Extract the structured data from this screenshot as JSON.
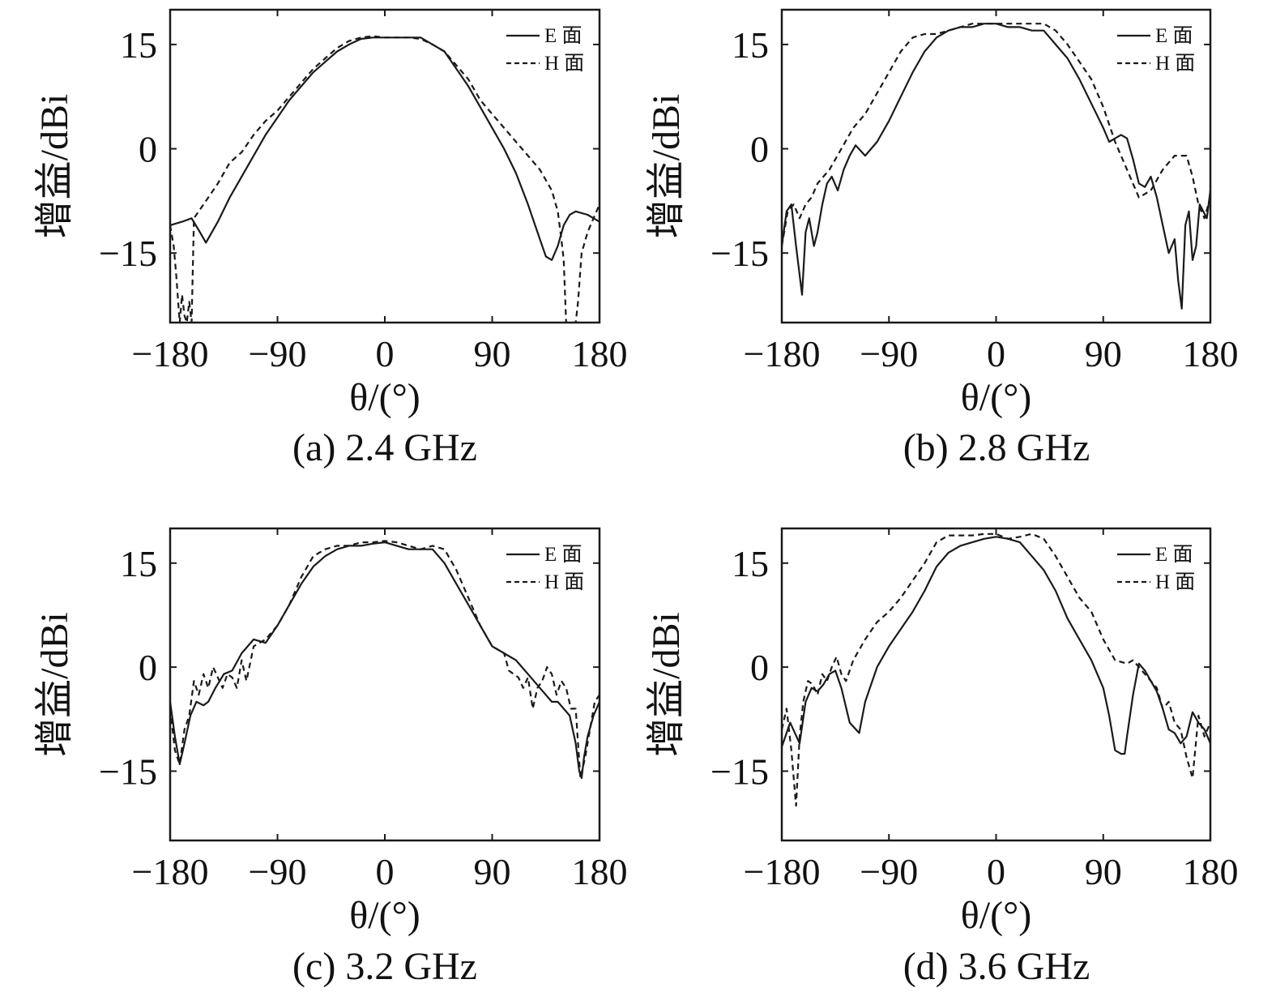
{
  "figure": {
    "panels": [
      {
        "caption": "(a) 2.4 GHz"
      },
      {
        "caption": "(b) 2.8 GHz"
      },
      {
        "caption": "(c) 3.2 GHz"
      },
      {
        "caption": "(d) 3.6 GHz"
      }
    ]
  },
  "colors": {
    "line": "#1a1a1a",
    "frame": "#1a1a1a",
    "background": "#ffffff"
  },
  "chart_data": [
    {
      "type": "line",
      "title": "(a) 2.4 GHz",
      "xlabel": "θ/(°)",
      "ylabel": "增益/dBi",
      "xlim": [
        -180,
        180
      ],
      "ylim": [
        -25,
        20
      ],
      "xticks": [
        -180,
        -90,
        0,
        90,
        180
      ],
      "xtick_labels": [
        "−180",
        "−90",
        "0",
        "90",
        "180"
      ],
      "yticks": [
        15,
        0,
        -15
      ],
      "ytick_labels": [
        "15",
        "0",
        "−15"
      ],
      "grid": false,
      "legend": "top-right",
      "series": [
        {
          "name": "E 面",
          "style": "solid",
          "x": [
            -180,
            -170,
            -162,
            -155,
            -150,
            -140,
            -130,
            -120,
            -110,
            -100,
            -90,
            -80,
            -70,
            -60,
            -50,
            -40,
            -30,
            -20,
            -10,
            0,
            10,
            20,
            30,
            40,
            50,
            60,
            70,
            80,
            90,
            100,
            110,
            120,
            130,
            135,
            140,
            145,
            150,
            155,
            160,
            170,
            180
          ],
          "y": [
            -11,
            -10.5,
            -10,
            -12,
            -13.5,
            -10.5,
            -7,
            -4,
            -1,
            2,
            4.5,
            7,
            9,
            11,
            12.5,
            14,
            15,
            15.8,
            16,
            16,
            16,
            16,
            16,
            15,
            14,
            11.5,
            9,
            6,
            3,
            0,
            -3.5,
            -8,
            -13,
            -15.5,
            -16,
            -14,
            -11,
            -9.5,
            -9,
            -9.5,
            -10.5
          ]
        },
        {
          "name": "H 面",
          "style": "dashed",
          "x": [
            -180,
            -177,
            -175,
            -172,
            -170,
            -168,
            -166,
            -164,
            -162,
            -160,
            -150,
            -140,
            -130,
            -120,
            -110,
            -100,
            -90,
            -80,
            -70,
            -60,
            -50,
            -40,
            -30,
            -20,
            -10,
            0,
            10,
            20,
            30,
            40,
            50,
            60,
            70,
            80,
            90,
            100,
            110,
            120,
            130,
            140,
            145,
            148,
            150,
            152,
            155,
            158,
            160,
            162,
            165,
            170,
            175,
            180
          ],
          "y": [
            -11,
            -14,
            -18,
            -25,
            -21,
            -24,
            -25,
            -22,
            -25,
            -10,
            -7.5,
            -5,
            -2,
            -0.5,
            2,
            4,
            5.5,
            7.5,
            9.5,
            11.5,
            13,
            14.5,
            15.5,
            16,
            16.2,
            16,
            16,
            16,
            15.8,
            15,
            14,
            12,
            10,
            7,
            5,
            3,
            1,
            -1,
            -3,
            -6,
            -9,
            -13,
            -16,
            -25,
            -25,
            -25,
            -25,
            -22,
            -15,
            -12,
            -10,
            -8
          ]
        }
      ]
    },
    {
      "type": "line",
      "title": "(b) 2.8 GHz",
      "xlabel": "θ/(°)",
      "ylabel": "增益/dBi",
      "xlim": [
        -180,
        180
      ],
      "ylim": [
        -25,
        20
      ],
      "xticks": [
        -180,
        -90,
        0,
        90,
        180
      ],
      "xtick_labels": [
        "−180",
        "−90",
        "0",
        "90",
        "180"
      ],
      "yticks": [
        15,
        0,
        -15
      ],
      "ytick_labels": [
        "15",
        "0",
        "−15"
      ],
      "grid": false,
      "legend": "top-right",
      "series": [
        {
          "name": "E 面",
          "style": "solid",
          "x": [
            -180,
            -176,
            -172,
            -168,
            -163,
            -160,
            -157,
            -153,
            -150,
            -146,
            -142,
            -138,
            -133,
            -128,
            -123,
            -118,
            -110,
            -100,
            -90,
            -80,
            -70,
            -60,
            -50,
            -40,
            -30,
            -20,
            -10,
            0,
            10,
            20,
            30,
            40,
            50,
            60,
            70,
            80,
            90,
            95,
            100,
            105,
            110,
            115,
            120,
            125,
            130,
            135,
            140,
            145,
            150,
            153,
            156,
            159,
            162,
            165,
            168,
            171,
            174,
            177,
            180
          ],
          "y": [
            -14,
            -9,
            -8,
            -14,
            -21,
            -12,
            -10,
            -14,
            -12,
            -8,
            -5,
            -4,
            -6,
            -3,
            -1,
            0.5,
            -1,
            1,
            4,
            7.5,
            11,
            14,
            16,
            17,
            17.5,
            17.5,
            18,
            18,
            17.5,
            17.5,
            17,
            17,
            15,
            13,
            10,
            6.5,
            3,
            1,
            1.5,
            2,
            1.5,
            -1.5,
            -5,
            -5.5,
            -4,
            -7,
            -11,
            -15,
            -13,
            -19,
            -23,
            -11,
            -9,
            -16,
            -14,
            -8,
            -9,
            -10,
            -6
          ]
        },
        {
          "name": "H 面",
          "style": "dashed",
          "x": [
            -180,
            -175,
            -170,
            -165,
            -160,
            -155,
            -150,
            -145,
            -140,
            -130,
            -120,
            -110,
            -100,
            -90,
            -80,
            -70,
            -60,
            -50,
            -40,
            -30,
            -20,
            -10,
            0,
            10,
            20,
            30,
            40,
            50,
            60,
            70,
            80,
            90,
            100,
            110,
            120,
            130,
            140,
            150,
            160,
            165,
            170,
            175,
            180
          ],
          "y": [
            -14,
            -9,
            -8,
            -10,
            -8,
            -7,
            -5,
            -4,
            -3,
            0,
            3,
            5,
            8,
            11,
            14,
            16,
            16.5,
            16.5,
            17,
            17.5,
            18,
            18,
            18,
            18,
            18,
            18,
            18,
            17,
            15,
            12.5,
            10,
            6,
            1,
            -3,
            -7,
            -6,
            -3,
            -1,
            -1,
            -4,
            -8,
            -10,
            -7
          ]
        }
      ]
    },
    {
      "type": "line",
      "title": "(c) 3.2 GHz",
      "xlabel": "θ/(°)",
      "ylabel": "增益/dBi",
      "xlim": [
        -180,
        180
      ],
      "ylim": [
        -25,
        20
      ],
      "xticks": [
        -180,
        -90,
        0,
        90,
        180
      ],
      "xtick_labels": [
        "−180",
        "−90",
        "0",
        "90",
        "180"
      ],
      "yticks": [
        15,
        0,
        -15
      ],
      "ytick_labels": [
        "15",
        "0",
        "−15"
      ],
      "grid": false,
      "legend": "top-right",
      "series": [
        {
          "name": "E 面",
          "style": "solid",
          "x": [
            -180,
            -176,
            -172,
            -168,
            -163,
            -158,
            -152,
            -148,
            -142,
            -135,
            -128,
            -120,
            -110,
            -100,
            -90,
            -80,
            -70,
            -60,
            -50,
            -40,
            -30,
            -20,
            -10,
            0,
            10,
            20,
            30,
            40,
            50,
            60,
            70,
            80,
            90,
            100,
            110,
            120,
            130,
            140,
            145,
            150,
            155,
            160,
            163,
            165,
            167,
            170,
            175,
            180
          ],
          "y": [
            -5,
            -10,
            -14,
            -11,
            -7,
            -5,
            -5.5,
            -5,
            -3,
            -1,
            -0.5,
            2,
            4,
            3.5,
            6,
            9,
            12,
            14.5,
            16,
            17,
            17.5,
            17.5,
            17.8,
            18,
            17.5,
            17,
            17,
            17,
            15,
            12,
            9,
            6,
            3,
            2,
            1,
            -1,
            -3,
            -5,
            -5,
            -6,
            -7,
            -11,
            -15,
            -16,
            -13,
            -10,
            -7,
            -5
          ]
        },
        {
          "name": "H 面",
          "style": "dashed",
          "x": [
            -180,
            -176,
            -172,
            -168,
            -164,
            -160,
            -156,
            -152,
            -148,
            -144,
            -140,
            -136,
            -132,
            -128,
            -124,
            -120,
            -116,
            -110,
            -100,
            -90,
            -80,
            -70,
            -60,
            -50,
            -40,
            -30,
            -20,
            -10,
            0,
            10,
            20,
            30,
            40,
            50,
            60,
            70,
            80,
            90,
            100,
            104,
            108,
            112,
            116,
            120,
            124,
            128,
            132,
            136,
            140,
            144,
            148,
            152,
            156,
            160,
            164,
            168,
            172,
            176,
            180
          ],
          "y": [
            -6,
            -12,
            -14,
            -9,
            -7,
            -2,
            -4,
            -1,
            -3,
            0,
            -1.5,
            -3,
            -1,
            -1.5,
            -3,
            1,
            -2,
            3,
            4,
            6,
            9,
            13,
            16,
            17,
            17.5,
            17.5,
            18,
            18,
            18.2,
            18,
            17.5,
            17,
            17.5,
            17,
            14,
            10,
            6,
            3,
            2,
            -0.5,
            -1,
            -1.5,
            -3,
            -1.5,
            -6,
            -3,
            -2,
            0,
            -1,
            -4,
            -2,
            -3,
            -6,
            -6,
            -16,
            -13,
            -9,
            -5,
            -4
          ]
        }
      ]
    },
    {
      "type": "line",
      "title": "(d) 3.6 GHz",
      "xlabel": "θ/(°)",
      "ylabel": "增益/dBi",
      "xlim": [
        -180,
        180
      ],
      "ylim": [
        -25,
        20
      ],
      "xticks": [
        -180,
        -90,
        0,
        90,
        180
      ],
      "xtick_labels": [
        "−180",
        "−90",
        "0",
        "90",
        "180"
      ],
      "yticks": [
        15,
        0,
        -15
      ],
      "ytick_labels": [
        "15",
        "0",
        "−15"
      ],
      "grid": false,
      "legend": "top-right",
      "series": [
        {
          "name": "E 面",
          "style": "solid",
          "x": [
            -180,
            -173,
            -165,
            -160,
            -155,
            -150,
            -145,
            -140,
            -135,
            -130,
            -123,
            -115,
            -110,
            -100,
            -90,
            -80,
            -70,
            -60,
            -50,
            -40,
            -30,
            -20,
            -10,
            0,
            10,
            20,
            30,
            40,
            50,
            60,
            70,
            80,
            90,
            95,
            100,
            105,
            108,
            110,
            115,
            120,
            125,
            130,
            135,
            140,
            145,
            150,
            155,
            160,
            165,
            170,
            175,
            180
          ],
          "y": [
            -11.5,
            -8,
            -11,
            -5,
            -3,
            -3.5,
            -2.5,
            -1,
            -0.5,
            -3,
            -8,
            -9.5,
            -5,
            0,
            3,
            5.5,
            8,
            11,
            14.5,
            16.5,
            17.5,
            18,
            18.5,
            18.8,
            18.5,
            18,
            16,
            14,
            11,
            7,
            4,
            1,
            -3,
            -7,
            -12,
            -12.5,
            -12.5,
            -10,
            -4,
            0.5,
            -0.5,
            -2,
            -3.5,
            -6,
            -9,
            -9.5,
            -11,
            -10,
            -6.5,
            -8,
            -9,
            -11
          ]
        },
        {
          "name": "H 面",
          "style": "dashed",
          "x": [
            -180,
            -176,
            -172,
            -168,
            -165,
            -162,
            -158,
            -154,
            -150,
            -146,
            -142,
            -138,
            -134,
            -130,
            -126,
            -120,
            -110,
            -100,
            -90,
            -80,
            -70,
            -60,
            -50,
            -40,
            -30,
            -20,
            -10,
            0,
            10,
            20,
            30,
            40,
            50,
            60,
            70,
            80,
            90,
            100,
            110,
            115,
            120,
            125,
            130,
            135,
            140,
            145,
            150,
            155,
            160,
            165,
            170,
            175,
            180
          ],
          "y": [
            -9,
            -6,
            -12,
            -20,
            -10,
            -5,
            -2,
            -2.5,
            -4,
            -1,
            -2,
            0,
            1.5,
            -1,
            -2,
            1,
            4,
            6.5,
            8,
            10,
            12.5,
            15,
            18,
            19,
            19,
            19,
            19.2,
            19.2,
            18.5,
            18.8,
            19.2,
            18.5,
            16,
            13,
            10,
            8,
            4,
            1,
            0.5,
            1,
            0,
            -1,
            -2,
            -3,
            -6,
            -5,
            -8,
            -9,
            -13,
            -16,
            -7,
            -10,
            -8
          ]
        }
      ]
    }
  ]
}
